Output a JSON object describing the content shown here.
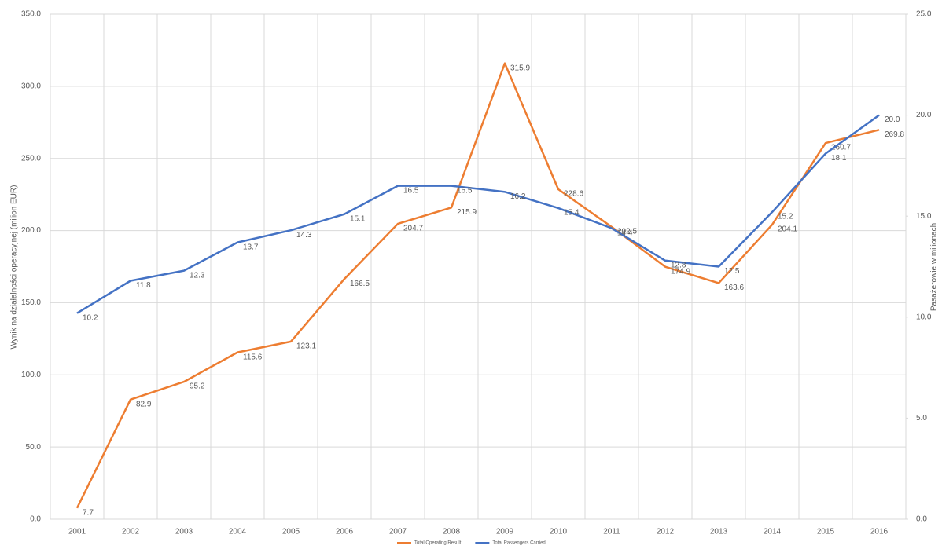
{
  "chart_data": {
    "type": "line",
    "categories": [
      "2001",
      "2002",
      "2003",
      "2004",
      "2005",
      "2006",
      "2007",
      "2008",
      "2009",
      "2010",
      "2011",
      "2012",
      "2013",
      "2014",
      "2015",
      "2016"
    ],
    "y_label": "Wynik na działalności operacyjnej (milion EUR)",
    "y2_label": "Pasażerowie w milionach",
    "ylim": [
      0,
      350
    ],
    "yticks": [
      {
        "value": 0,
        "label": "0.0"
      },
      {
        "value": 50,
        "label": "50.0"
      },
      {
        "value": 100,
        "label": "100.0"
      },
      {
        "value": 150,
        "label": "150.0"
      },
      {
        "value": 200,
        "label": "200.0"
      },
      {
        "value": 250,
        "label": "250.0"
      },
      {
        "value": 300,
        "label": "300.0"
      },
      {
        "value": 350,
        "label": "350.0"
      }
    ],
    "y2lim": [
      0,
      25
    ],
    "y2ticks": [
      {
        "value": 0,
        "label": "0.0"
      },
      {
        "value": 5,
        "label": "5.0"
      },
      {
        "value": 10,
        "label": "10.0"
      },
      {
        "value": 15,
        "label": "15.0"
      },
      {
        "value": 20,
        "label": "20.0"
      },
      {
        "value": 25,
        "label": "25.0"
      }
    ],
    "grid": true,
    "legend": "bottom",
    "series": [
      {
        "name": "Total Operating Result",
        "color": "#ed7d31",
        "values": [
          7.7,
          82.9,
          95.2,
          115.6,
          123.1,
          166.5,
          204.7,
          215.9,
          315.9,
          228.6,
          202.5,
          174.9,
          163.6,
          204.1,
          260.7,
          269.8
        ]
      },
      {
        "name": "Total Passengers Carried",
        "color": "#4472c4",
        "axis": "y2",
        "values": [
          10.2,
          11.8,
          12.3,
          13.7,
          14.3,
          15.1,
          16.5,
          16.5,
          16.2,
          15.4,
          14.4,
          12.8,
          12.5,
          15.2,
          18.1,
          20
        ],
        "value_labels": [
          "10.2",
          "11.8",
          "12.3",
          "13.7",
          "14.3",
          "15.1",
          "16.5",
          "16.5",
          "16.2",
          "15.4",
          "14.4",
          "12.8",
          "12.5",
          "15.2",
          "18.1",
          "20.0"
        ]
      }
    ]
  }
}
